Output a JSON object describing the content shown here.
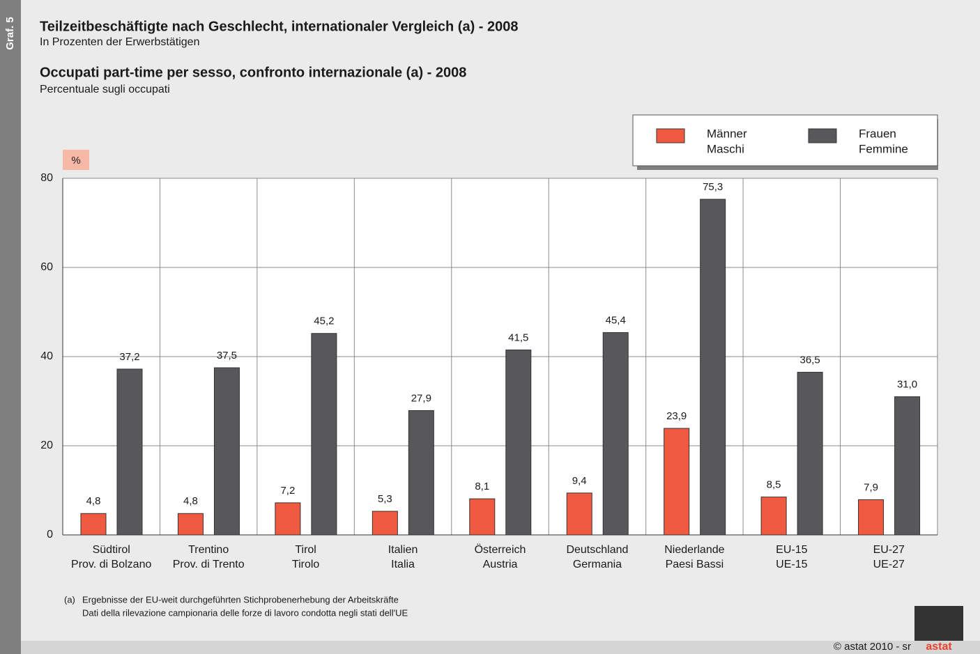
{
  "chart_data": {
    "type": "bar",
    "side_label": "Graf. 5",
    "title": "Teilzeitbeschäftigte nach Geschlecht, internationaler Vergleich (a) - 2008",
    "subtitle": "In Prozenten der Erwerbstätigen",
    "title2": "Occupati part-time per sesso, confronto internazionale (a) - 2008",
    "subtitle2": "Percentuale sugli occupati",
    "y_label": "%",
    "categories": [
      [
        "Südtirol",
        "Prov. di Bolzano"
      ],
      [
        "Trentino",
        "Prov. di Trento"
      ],
      [
        "Tirol",
        "Tirolo"
      ],
      [
        "Italien",
        "Italia"
      ],
      [
        "Österreich",
        "Austria"
      ],
      [
        "Deutschland",
        "Germania"
      ],
      [
        "Niederlande",
        "Paesi Bassi"
      ],
      [
        "EU-15",
        "UE-15"
      ],
      [
        "EU-27",
        "UE-27"
      ]
    ],
    "series": [
      {
        "name": [
          "Männer",
          "Maschi"
        ],
        "color": "#f05a40",
        "values": [
          4.8,
          4.8,
          7.2,
          5.3,
          8.1,
          9.4,
          23.9,
          8.5,
          7.9
        ],
        "value_labels": [
          "4,8",
          "4,8",
          "7,2",
          "5,3",
          "8,1",
          "9,4",
          "23,9",
          "8,5",
          "7,9"
        ]
      },
      {
        "name": [
          "Frauen",
          "Femmine"
        ],
        "color": "#58585a",
        "values": [
          37.2,
          37.5,
          45.2,
          27.9,
          41.5,
          45.4,
          75.3,
          36.5,
          31.0
        ],
        "value_labels": [
          "37,2",
          "37,5",
          "45,2",
          "27,9",
          "41,5",
          "45,4",
          "75,3",
          "36,5",
          "31,0"
        ]
      }
    ],
    "ylim": [
      0,
      80
    ],
    "yticks": [
      0,
      20,
      40,
      60,
      80
    ],
    "grid": true,
    "footnote": {
      "marker": "(a)",
      "lines": [
        "Ergebnisse der EU-weit durchgeführten Stichprobenerhebung der Arbeitskräfte",
        "Dati della rilevazione campionaria delle forze di lavoro condotta negli stati dell'UE"
      ]
    },
    "copyright": "© astat 2010 - sr",
    "logo": "astat"
  }
}
